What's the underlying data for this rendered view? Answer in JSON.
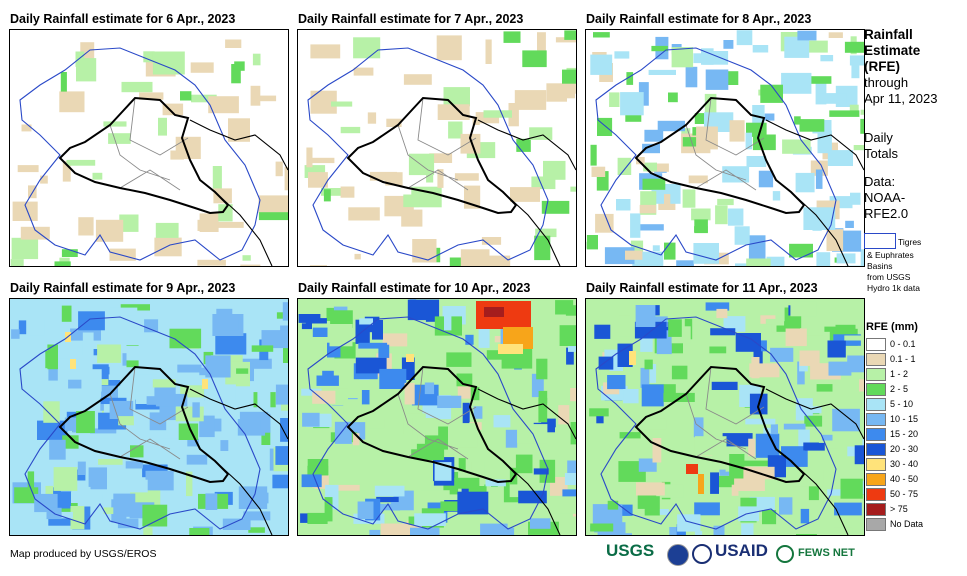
{
  "panels": [
    {
      "title": "Daily Rainfall estimate for 6 Apr., 2023",
      "level": 0
    },
    {
      "title": "Daily Rainfall estimate for 7 Apr., 2023",
      "level": 0
    },
    {
      "title": "Daily Rainfall estimate for 8 Apr., 2023",
      "level": 1
    },
    {
      "title": "Daily Rainfall estimate for 9 Apr., 2023",
      "level": 2
    },
    {
      "title": "Daily Rainfall estimate for 10 Apr., 2023",
      "level": 3
    },
    {
      "title": "Daily Rainfall estimate for 11 Apr., 2023",
      "level": 4
    }
  ],
  "sidebar": {
    "title_lines": [
      "Rainfall",
      "Estimate",
      "(RFE)"
    ],
    "through": "through",
    "date": "Apr 11, 2023",
    "daily": "Daily",
    "totals": "Totals",
    "data_label": "Data:",
    "data_src1": "NOAA-",
    "data_src2": "RFE2.0"
  },
  "basin_legend": {
    "line1": "Tigres",
    "line2": "& Euphrates",
    "line3": "Basins",
    "line4": "from USGS",
    "line5": "Hydro 1k data"
  },
  "legend": {
    "title": "RFE (mm)",
    "items": [
      {
        "label": "0 - 0.1",
        "color": "#ffffff"
      },
      {
        "label": "0.1 - 1",
        "color": "#ead8b5"
      },
      {
        "label": "1 - 2",
        "color": "#b7f1a7"
      },
      {
        "label": "2 - 5",
        "color": "#62da5b"
      },
      {
        "label": "5 - 10",
        "color": "#a9e4f6"
      },
      {
        "label": "10 - 15",
        "color": "#77b8f3"
      },
      {
        "label": "15 - 20",
        "color": "#3d8aee"
      },
      {
        "label": "20 - 30",
        "color": "#1a56d6"
      },
      {
        "label": "30 - 40",
        "color": "#ffe37a"
      },
      {
        "label": "40 - 50",
        "color": "#f7a51a"
      },
      {
        "label": "50 - 75",
        "color": "#ee3a11"
      },
      {
        "label": "> 75",
        "color": "#a51d1d"
      },
      {
        "label": "No Data",
        "color": "#a8a8a8"
      }
    ]
  },
  "credit": "Map produced by USGS/EROS",
  "logos": {
    "usgs": "USGS",
    "usaid": "USAID",
    "fews": "FEWS NET"
  }
}
